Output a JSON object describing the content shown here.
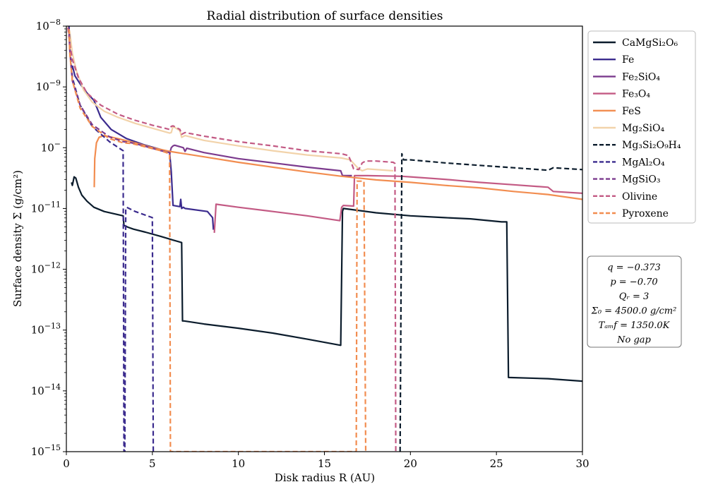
{
  "chart_data": {
    "type": "line",
    "title": "Radial distribution of surface densities",
    "xlabel": "Disk radius R (AU)",
    "ylabel": "Surface density Σ (g/cm²)",
    "xlim": [
      0,
      30
    ],
    "ylim_log10": [
      -15,
      -8
    ],
    "y_scale": "log",
    "grid": false,
    "legend_position": "outside-right-top",
    "x_ticks": [
      {
        "v": 0,
        "label": "0"
      },
      {
        "v": 5,
        "label": "5"
      },
      {
        "v": 10,
        "label": "10"
      },
      {
        "v": 15,
        "label": "15"
      },
      {
        "v": 20,
        "label": "20"
      },
      {
        "v": 25,
        "label": "25"
      },
      {
        "v": 30,
        "label": "30"
      }
    ],
    "y_ticks": [
      {
        "v": -8,
        "label": "10−8"
      },
      {
        "v": -9,
        "label": "10−9"
      },
      {
        "v": -10,
        "label": "10−10"
      },
      {
        "v": -11,
        "label": "10−11"
      },
      {
        "v": -12,
        "label": "10−12"
      },
      {
        "v": -13,
        "label": "10−13"
      },
      {
        "v": -14,
        "label": "10−14"
      },
      {
        "v": -15,
        "label": "10−15"
      }
    ],
    "series": [
      {
        "name": "CaMgSi₂O₆",
        "color": "#0b1c2c",
        "dash": false,
        "x": [
          0.3,
          0.35,
          0.45,
          0.55,
          0.7,
          0.9,
          1.2,
          1.6,
          2.2,
          3.3,
          3.35,
          3.6,
          3.9,
          4.6,
          5.5,
          6.2,
          6.7,
          6.75,
          6.8,
          6.85,
          8.0,
          10.0,
          12.0,
          14.0,
          15.95,
          16.05,
          16.1,
          18.0,
          20.0,
          22.0,
          23.5,
          25.3,
          25.35,
          25.6,
          25.7,
          28.0,
          30.0
        ],
        "y": [
          -10.57,
          -10.62,
          -10.48,
          -10.5,
          -10.65,
          -10.78,
          -10.88,
          -10.98,
          -11.05,
          -11.12,
          -11.28,
          -11.31,
          -11.34,
          -11.39,
          -11.46,
          -11.52,
          -11.56,
          -12.85,
          -12.85,
          -12.85,
          -12.9,
          -12.97,
          -13.05,
          -13.15,
          -13.25,
          -11.05,
          -11.0,
          -11.07,
          -11.12,
          -11.15,
          -11.17,
          -11.22,
          -11.22,
          -11.22,
          -13.78,
          -13.8,
          -13.84
        ]
      },
      {
        "name": "Fe",
        "color": "#3b2b8e",
        "dash": false,
        "x": [
          0.35,
          0.5,
          0.8,
          1.2,
          1.6,
          2.0,
          2.6,
          3.5,
          4.5,
          5.5,
          6.0,
          6.1,
          6.2,
          6.6,
          6.65,
          6.7,
          6.8,
          6.9,
          8.2,
          8.5,
          8.55
        ],
        "y": [
          -8.65,
          -8.82,
          -8.95,
          -9.1,
          -9.22,
          -9.5,
          -9.7,
          -9.85,
          -9.95,
          -10.03,
          -10.07,
          -10.4,
          -10.95,
          -10.97,
          -10.85,
          -11.0,
          -10.98,
          -11.0,
          -11.05,
          -11.15,
          -11.35
        ]
      },
      {
        "name": "Fe₂SiO₄",
        "color": "#7c3b8e",
        "dash": false,
        "x": [
          6.0,
          6.05,
          6.1,
          6.2,
          6.3,
          6.8,
          6.9,
          7.0,
          8.0,
          10.0,
          12.0,
          14.0,
          15.95,
          16.05,
          16.5,
          16.6
        ],
        "y": [
          -10.12,
          -10.05,
          -10.0,
          -9.97,
          -9.96,
          -10.0,
          -10.06,
          -10.01,
          -10.08,
          -10.18,
          -10.25,
          -10.32,
          -10.38,
          -10.46,
          -10.46,
          -10.46
        ]
      },
      {
        "name": "Fe₃O₄",
        "color": "#c35a84",
        "dash": false,
        "x": [
          8.6,
          8.7,
          10.0,
          12.0,
          14.0,
          15.9,
          16.0,
          16.1,
          16.7,
          16.75,
          17.5,
          19.5,
          20.0,
          22.0,
          24.0,
          26.0,
          28.0,
          28.3,
          30.0
        ],
        "y": [
          -11.4,
          -10.93,
          -10.98,
          -11.05,
          -11.12,
          -11.2,
          -10.98,
          -10.95,
          -10.96,
          -10.46,
          -10.46,
          -10.47,
          -10.48,
          -10.52,
          -10.57,
          -10.61,
          -10.65,
          -10.72,
          -10.75
        ]
      },
      {
        "name": "FeS",
        "color": "#f28d50",
        "dash": false,
        "x": [
          1.62,
          1.65,
          1.75,
          1.9,
          2.2,
          3.0,
          4.0,
          5.0,
          6.0,
          8.0,
          10.0,
          12.0,
          14.0,
          16.0,
          18.0,
          20.0,
          22.0,
          24.0,
          26.0,
          28.0,
          30.0
        ],
        "y": [
          -10.65,
          -10.18,
          -9.92,
          -9.83,
          -9.8,
          -9.85,
          -9.92,
          -10.0,
          -10.06,
          -10.15,
          -10.24,
          -10.32,
          -10.4,
          -10.47,
          -10.53,
          -10.57,
          -10.62,
          -10.66,
          -10.72,
          -10.77,
          -10.85
        ]
      },
      {
        "name": "Mg₂SiO₄",
        "color": "#f2d3aa",
        "dash": false,
        "x": [
          0.1,
          0.2,
          0.35,
          0.6,
          1.0,
          1.5,
          2.2,
          3.0,
          4.0,
          5.0,
          6.0,
          6.1,
          6.2,
          6.6,
          6.7,
          6.9,
          8.0,
          10.0,
          12.0,
          14.0,
          16.0,
          16.5,
          17.0,
          17.2,
          17.5,
          19.0
        ],
        "y": [
          -8.0,
          -8.1,
          -8.45,
          -8.75,
          -9.05,
          -9.25,
          -9.4,
          -9.5,
          -9.6,
          -9.68,
          -9.76,
          -9.75,
          -9.65,
          -9.72,
          -9.83,
          -9.8,
          -9.88,
          -9.97,
          -10.05,
          -10.12,
          -10.17,
          -10.2,
          -10.35,
          -10.38,
          -10.35,
          -10.38
        ]
      },
      {
        "name": "Mg₃Si₂O₉H₄",
        "color": "#0b1c2c",
        "dash": true,
        "x": [
          19.4,
          19.5,
          19.6,
          20.0,
          22.0,
          24.0,
          26.0,
          28.0,
          28.3,
          30.0
        ],
        "y": [
          -15.0,
          -10.1,
          -10.2,
          -10.2,
          -10.25,
          -10.29,
          -10.33,
          -10.37,
          -10.33,
          -10.36
        ]
      },
      {
        "name": "MgAl₂O₄",
        "color": "#3b2b8e",
        "dash": true,
        "x": [
          0.15,
          0.2,
          0.35,
          0.8,
          1.5,
          2.5,
          3.3,
          3.35,
          3.4,
          3.45,
          3.5,
          4.0,
          4.5,
          5.0,
          5.05,
          5.1
        ],
        "y": [
          -8.0,
          -8.35,
          -8.85,
          -9.3,
          -9.65,
          -9.9,
          -10.05,
          -15.0,
          -15.0,
          -11.0,
          -10.98,
          -11.05,
          -11.1,
          -11.15,
          -15.0,
          -15.0
        ]
      },
      {
        "name": "MgSiO₃",
        "color": "#7c3b8e",
        "dash": true,
        "x": [
          0.15,
          0.2,
          0.35,
          0.8,
          1.5,
          2.5,
          3.3,
          3.8,
          4.5,
          5.5,
          6.0
        ],
        "y": [
          -8.1,
          -8.4,
          -8.9,
          -9.3,
          -9.62,
          -9.82,
          -9.9,
          -9.92,
          -9.97,
          -10.05,
          -10.08
        ]
      },
      {
        "name": "Olivine",
        "color": "#c35a84",
        "dash": true,
        "x": [
          0.0,
          0.1,
          0.2,
          0.35,
          0.7,
          1.2,
          2.0,
          3.0,
          4.0,
          5.0,
          6.0,
          6.1,
          6.2,
          6.6,
          6.7,
          6.9,
          8.0,
          10.0,
          12.0,
          14.0,
          16.0,
          16.4,
          16.5,
          16.7,
          17.0,
          17.2,
          17.4,
          17.6,
          18.0,
          19.0,
          19.1,
          19.15
        ],
        "y": [
          -7.9,
          -8.05,
          -8.3,
          -8.55,
          -8.85,
          -9.1,
          -9.3,
          -9.45,
          -9.55,
          -9.63,
          -9.7,
          -9.65,
          -9.64,
          -9.7,
          -9.78,
          -9.75,
          -9.81,
          -9.9,
          -9.97,
          -10.05,
          -10.1,
          -10.13,
          -10.2,
          -10.35,
          -10.36,
          -10.25,
          -10.22,
          -10.22,
          -10.22,
          -10.24,
          -10.26,
          -15.0
        ]
      },
      {
        "name": "Pyroxene",
        "color": "#f28d50",
        "dash": true,
        "x": [
          0.15,
          0.2,
          0.35,
          0.8,
          1.5,
          2.5,
          3.3,
          3.8,
          4.5,
          5.5,
          6.0,
          6.05,
          6.1,
          6.15,
          16.8,
          16.85,
          16.9,
          17.0,
          17.3,
          17.4
        ],
        "y": [
          -8.05,
          -8.45,
          -8.9,
          -9.35,
          -9.65,
          -9.85,
          -9.92,
          -9.93,
          -9.98,
          -10.05,
          -10.1,
          -15.0,
          -15.0,
          -15.0,
          -15.0,
          -15.0,
          -10.55,
          -10.55,
          -10.55,
          -15.0
        ]
      }
    ],
    "info_box": [
      "q = −0.373",
      "p = −0.70",
      "Qᵣ = 3",
      "Σ₀ = 4500.0 g/cm²",
      "Tₐₘf = 1350.0K",
      "No gap"
    ]
  }
}
